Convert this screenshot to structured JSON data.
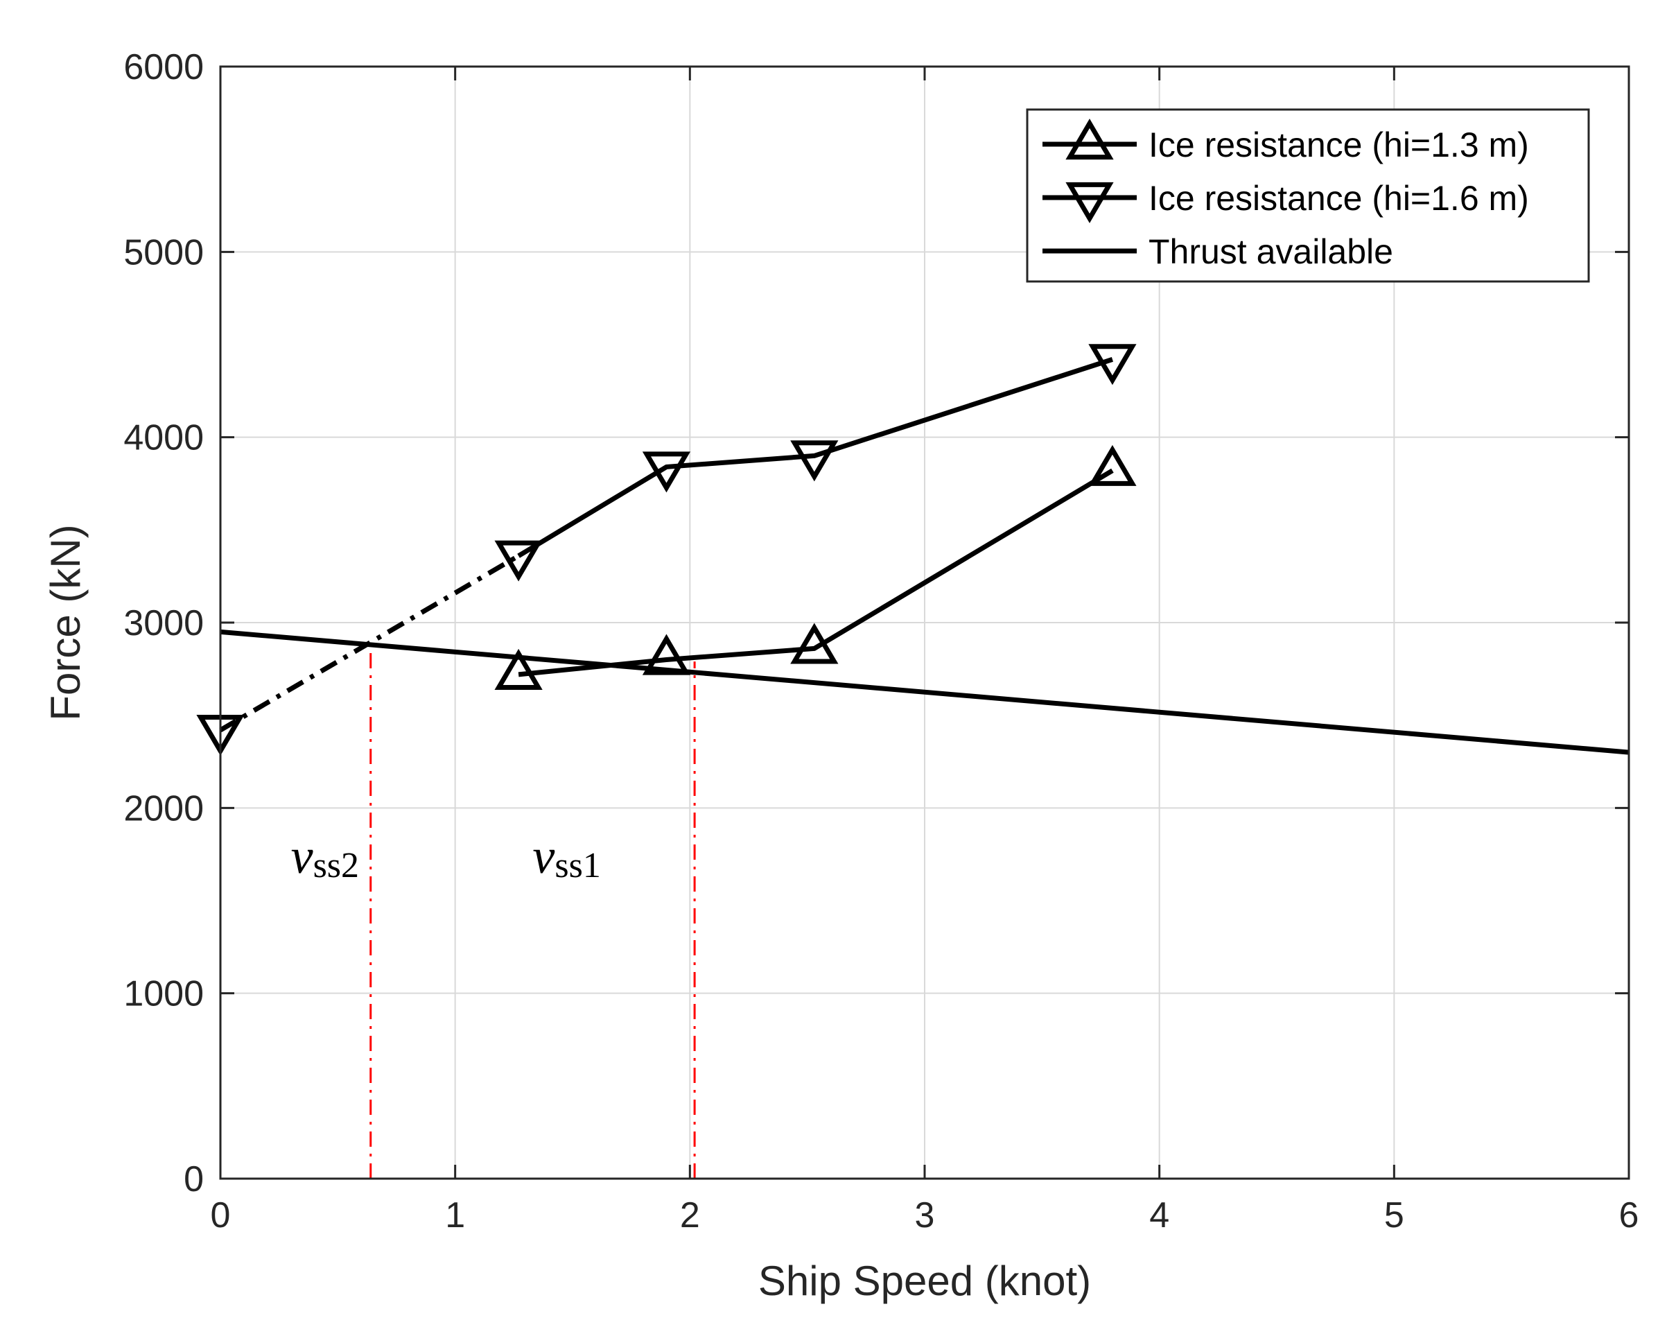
{
  "chart_data": {
    "type": "line",
    "title": "",
    "xlabel": "Ship Speed (knot)",
    "ylabel": "Force (kN)",
    "xlim": [
      0,
      6
    ],
    "ylim": [
      0,
      6000
    ],
    "xticks": [
      0,
      1,
      2,
      3,
      4,
      5,
      6
    ],
    "yticks": [
      0,
      1000,
      2000,
      3000,
      4000,
      5000,
      6000
    ],
    "grid": true,
    "legend_position": "top-right",
    "series": [
      {
        "name": "Ice resistance (hi=1.3 m)",
        "marker": "triangle-up",
        "line": "solid",
        "x": [
          1.27,
          1.9,
          2.53,
          3.8
        ],
        "y": [
          2720,
          2800,
          2860,
          3820
        ]
      },
      {
        "name": "Ice resistance (hi=1.6 m)",
        "marker": "triangle-down",
        "line": "solid",
        "x": [
          1.27,
          1.9,
          2.53,
          3.8
        ],
        "y": [
          3360,
          3840,
          3900,
          4420
        ],
        "extrapolation": {
          "line": "dash-dot",
          "x": [
            0,
            1.27
          ],
          "y": [
            2420,
            3360
          ]
        }
      },
      {
        "name": "Thrust available",
        "marker": "none",
        "line": "solid",
        "x": [
          0,
          6
        ],
        "y": [
          2950,
          2300
        ]
      }
    ],
    "reference_lines": [
      {
        "x": 0.64,
        "y_top": 2900,
        "color": "#ff0000",
        "style": "dash-dot",
        "label_main": "v",
        "label_sub": "ss2",
        "label_x": 0.3,
        "label_y": 1650
      },
      {
        "x": 2.02,
        "y_top": 2790,
        "color": "#ff0000",
        "style": "dash-dot",
        "label_main": "v",
        "label_sub": "ss1",
        "label_x": 1.33,
        "label_y": 1650
      }
    ]
  }
}
